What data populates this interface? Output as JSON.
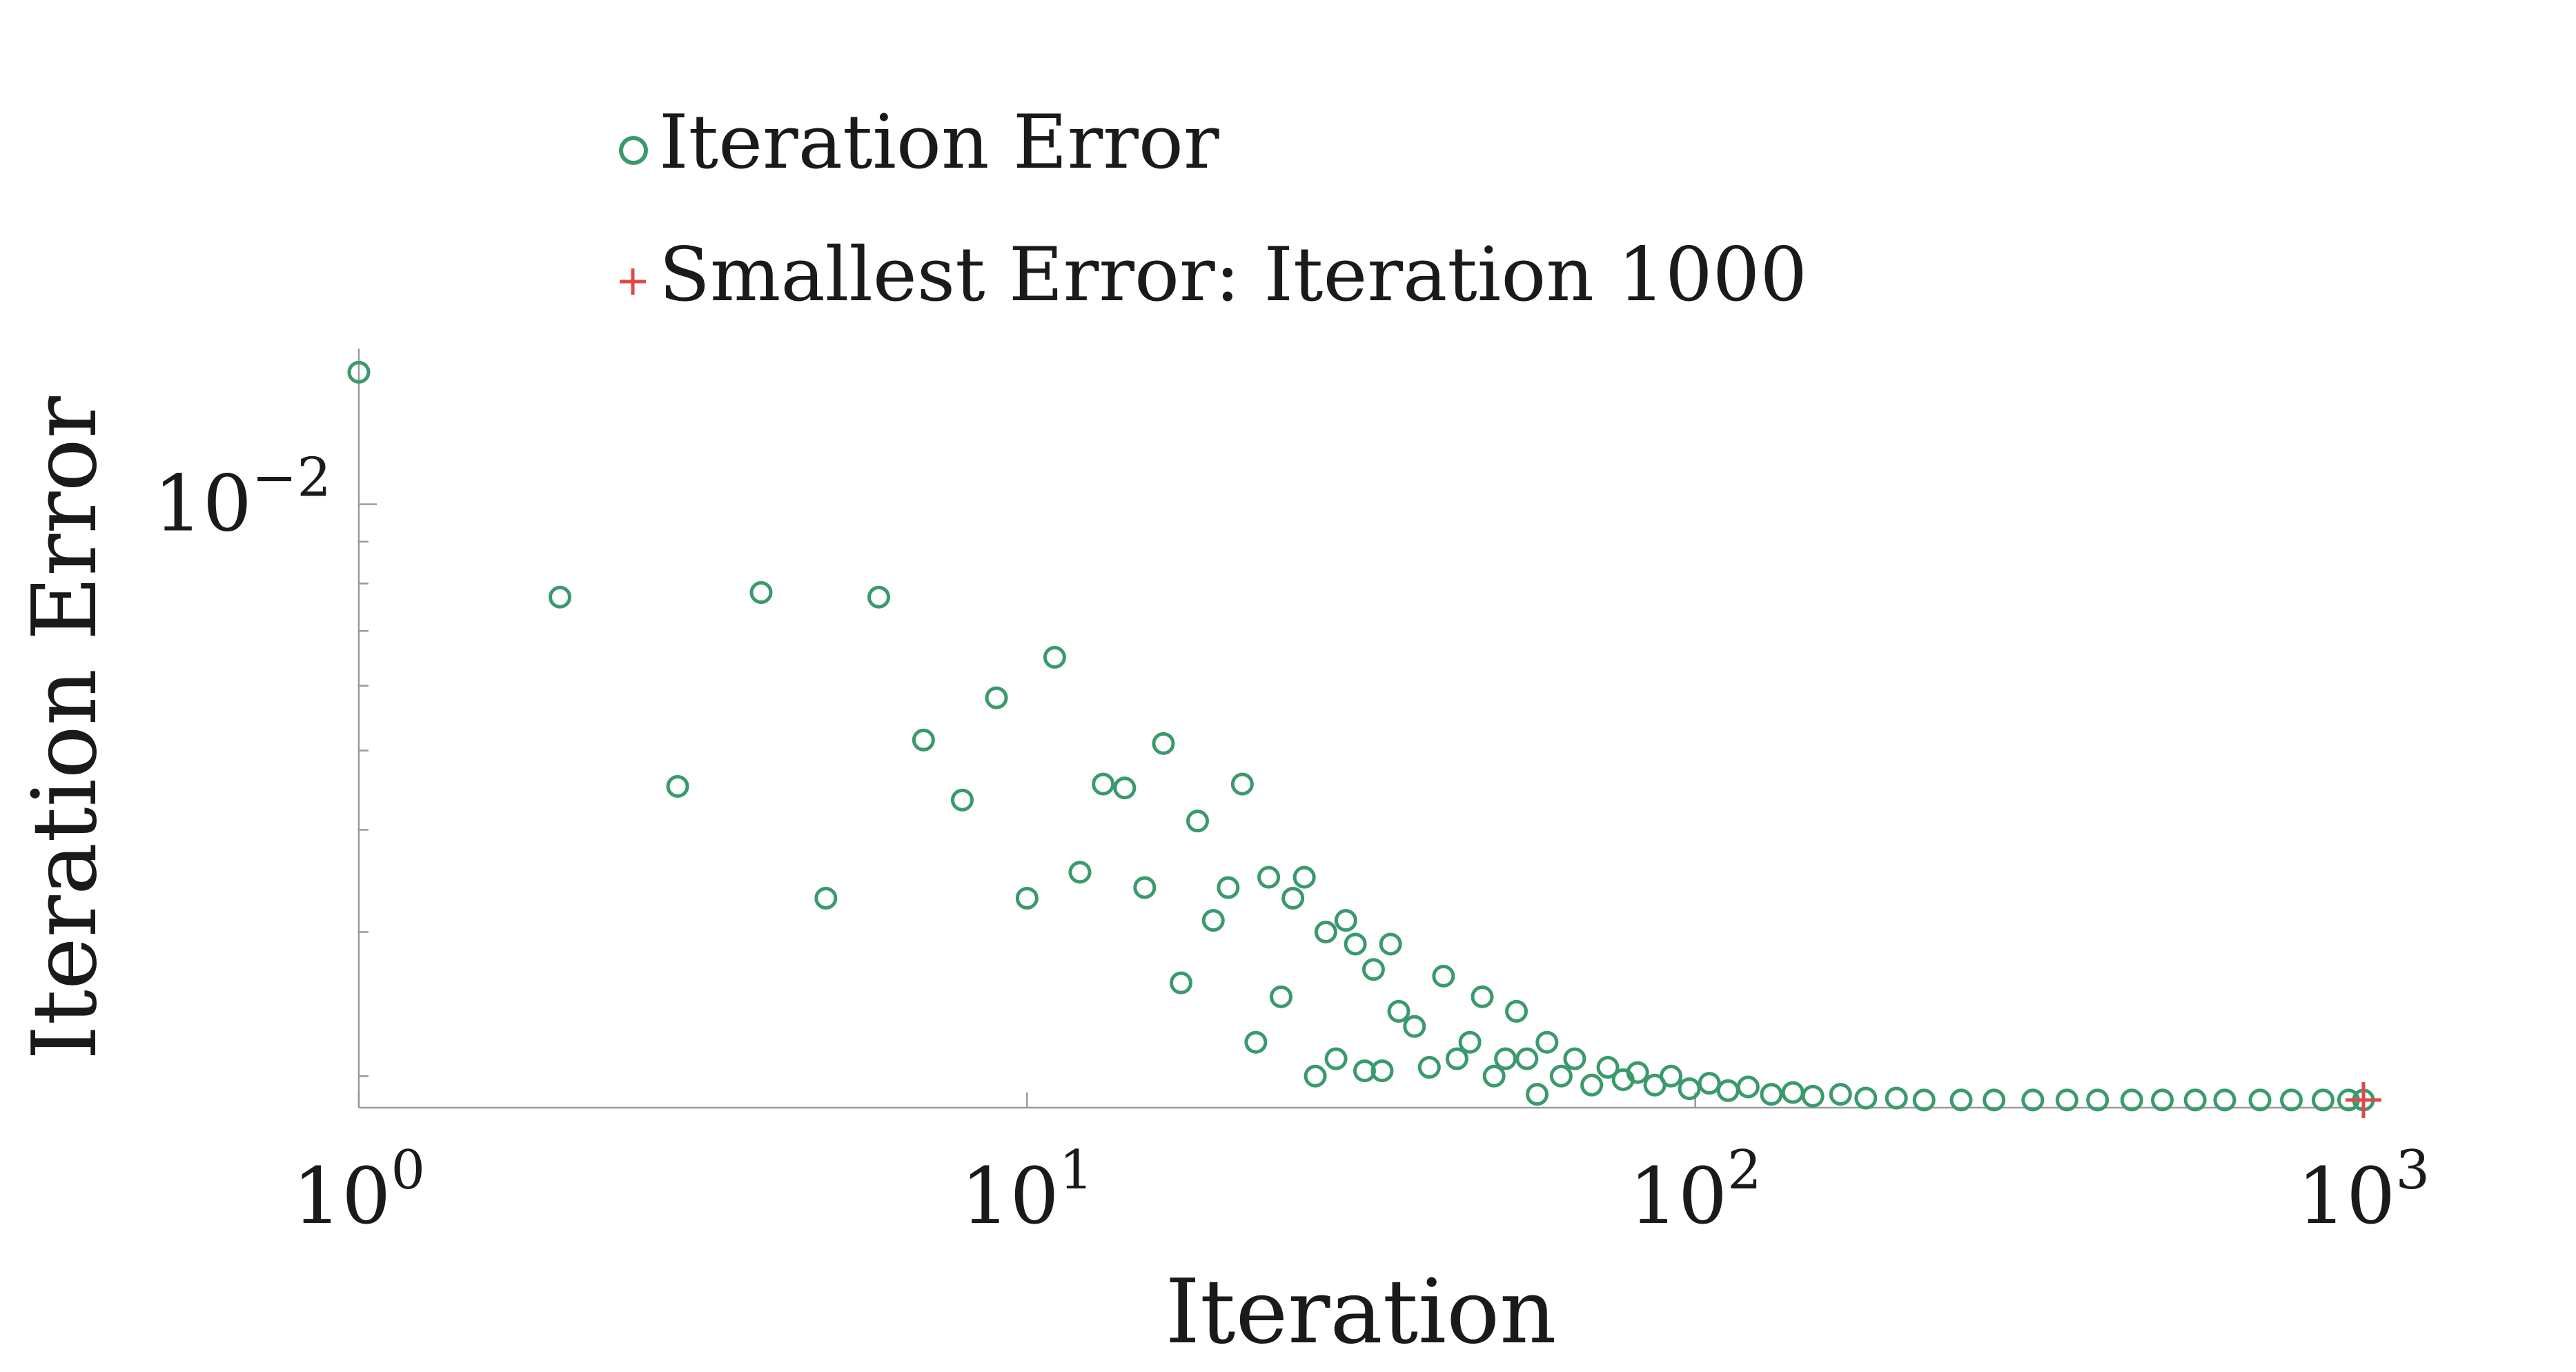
{
  "chart_data": {
    "type": "scatter",
    "xscale": "log",
    "yscale": "log",
    "xlabel": "Iteration",
    "ylabel": "Iteration Error",
    "xlim": [
      1,
      1000
    ],
    "ylim": [
      0.00183,
      0.0155
    ],
    "x_tick_labels": [
      {
        "value": 1,
        "base": "10",
        "exp": "0"
      },
      {
        "value": 10,
        "base": "10",
        "exp": "1"
      },
      {
        "value": 100,
        "base": "10",
        "exp": "2"
      },
      {
        "value": 1000,
        "base": "10",
        "exp": "3"
      }
    ],
    "y_tick_labels": [
      {
        "value": 0.01,
        "base": "10",
        "exp": "−2"
      }
    ],
    "y_minor_ticks": [
      0.002,
      0.003,
      0.004,
      0.005,
      0.006,
      0.007,
      0.008,
      0.009
    ],
    "grid": false,
    "legend": {
      "placement": "top-center",
      "entries": [
        {
          "label": "Iteration Error",
          "marker": "circle",
          "color": "#3a9a6c"
        },
        {
          "label": "Smallest Error: Iteration 1000",
          "marker": "plus",
          "color": "#e04848"
        }
      ]
    },
    "series": [
      {
        "name": "Iteration Error",
        "marker": "circle",
        "color": "#3a9a6c",
        "points": [
          [
            1,
            0.0145
          ],
          [
            2,
            0.0077
          ],
          [
            3,
            0.00452
          ],
          [
            4,
            0.0078
          ],
          [
            5,
            0.0033
          ],
          [
            6,
            0.0077
          ],
          [
            7,
            0.00515
          ],
          [
            8,
            0.00435
          ],
          [
            9,
            0.0058
          ],
          [
            10,
            0.0033
          ],
          [
            11,
            0.0065
          ],
          [
            12,
            0.00355
          ],
          [
            13,
            0.00455
          ],
          [
            14,
            0.0045
          ],
          [
            15,
            0.0034
          ],
          [
            16,
            0.0051
          ],
          [
            17,
            0.0026
          ],
          [
            18,
            0.0041
          ],
          [
            19,
            0.0031
          ],
          [
            20,
            0.0034
          ],
          [
            21,
            0.00455
          ],
          [
            22,
            0.0022
          ],
          [
            23,
            0.0035
          ],
          [
            24,
            0.0025
          ],
          [
            25,
            0.0033
          ],
          [
            26,
            0.0035
          ],
          [
            27,
            0.002
          ],
          [
            28,
            0.003
          ],
          [
            29,
            0.0021
          ],
          [
            30,
            0.0031
          ],
          [
            31,
            0.0029
          ],
          [
            32,
            0.00203
          ],
          [
            33,
            0.0027
          ],
          [
            34,
            0.00203
          ],
          [
            35,
            0.0029
          ],
          [
            36,
            0.0024
          ],
          [
            38,
            0.0023
          ],
          [
            40,
            0.00205
          ],
          [
            42,
            0.00265
          ],
          [
            44,
            0.0021
          ],
          [
            46,
            0.0022
          ],
          [
            48,
            0.0025
          ],
          [
            50,
            0.002
          ],
          [
            52,
            0.0021
          ],
          [
            54,
            0.0024
          ],
          [
            56,
            0.0021
          ],
          [
            58,
            0.0019
          ],
          [
            60,
            0.0022
          ],
          [
            63,
            0.002
          ],
          [
            66,
            0.0021
          ],
          [
            70,
            0.00195
          ],
          [
            74,
            0.00205
          ],
          [
            78,
            0.00198
          ],
          [
            82,
            0.00202
          ],
          [
            87,
            0.00195
          ],
          [
            92,
            0.002
          ],
          [
            98,
            0.00193
          ],
          [
            105,
            0.00196
          ],
          [
            112,
            0.00192
          ],
          [
            120,
            0.00194
          ],
          [
            130,
            0.0019
          ],
          [
            140,
            0.00191
          ],
          [
            150,
            0.00189
          ],
          [
            165,
            0.0019
          ],
          [
            180,
            0.00188
          ],
          [
            200,
            0.00188
          ],
          [
            220,
            0.00187
          ],
          [
            250,
            0.00187
          ],
          [
            280,
            0.00187
          ],
          [
            320,
            0.00187
          ],
          [
            360,
            0.00187
          ],
          [
            400,
            0.00187
          ],
          [
            450,
            0.00187
          ],
          [
            500,
            0.00187
          ],
          [
            560,
            0.00187
          ],
          [
            620,
            0.00187
          ],
          [
            700,
            0.00187
          ],
          [
            780,
            0.00187
          ],
          [
            870,
            0.00187
          ],
          [
            950,
            0.00187
          ],
          [
            1000,
            0.00187
          ]
        ]
      },
      {
        "name": "Smallest Error: Iteration 1000",
        "marker": "plus",
        "color": "#e04848",
        "points": [
          [
            1000,
            0.00187
          ]
        ]
      }
    ]
  }
}
